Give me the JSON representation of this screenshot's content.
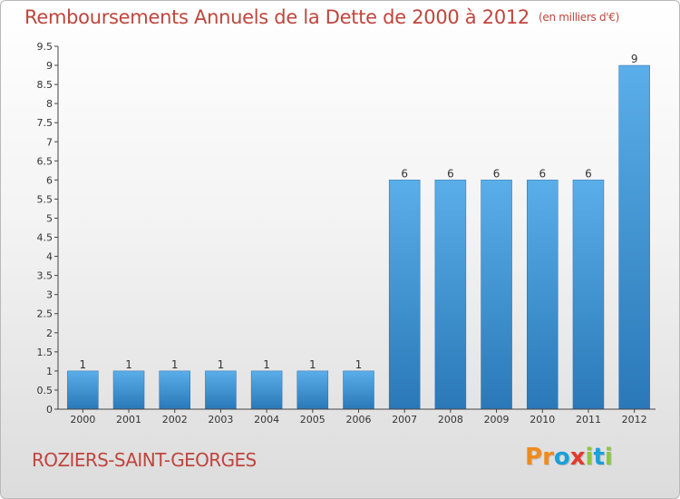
{
  "title": "Remboursements Annuels de la Dette de 2000 à 2012",
  "unit_note": "(en milliers d'€)",
  "town": "ROZIERS-SAINT-GEORGES",
  "logo": {
    "text": "Proxiti",
    "colors": [
      "#f08a1c",
      "#f08a1c",
      "#1aa0d8",
      "#e23b2e",
      "#8cc63f",
      "#1aa0d8",
      "#8cc63f"
    ]
  },
  "colors": {
    "bar_top": "#5aaee9",
    "bar_bottom": "#2a78b8",
    "title": "#c0453d"
  },
  "chart_data": {
    "type": "bar",
    "title": "Remboursements Annuels de la Dette de 2000 à 2012",
    "categories": [
      "2000",
      "2001",
      "2002",
      "2003",
      "2004",
      "2005",
      "2006",
      "2007",
      "2008",
      "2009",
      "2010",
      "2011",
      "2012"
    ],
    "values": [
      1,
      1,
      1,
      1,
      1,
      1,
      1,
      6,
      6,
      6,
      6,
      6,
      9
    ],
    "ylim": [
      0,
      9.5
    ],
    "yticks": [
      0,
      0.5,
      1,
      1.5,
      2,
      2.5,
      3,
      3.5,
      4,
      4.5,
      5,
      5.5,
      6,
      6.5,
      7,
      7.5,
      8,
      8.5,
      9,
      9.5
    ],
    "xlabel": "",
    "ylabel": "",
    "grid": false
  }
}
